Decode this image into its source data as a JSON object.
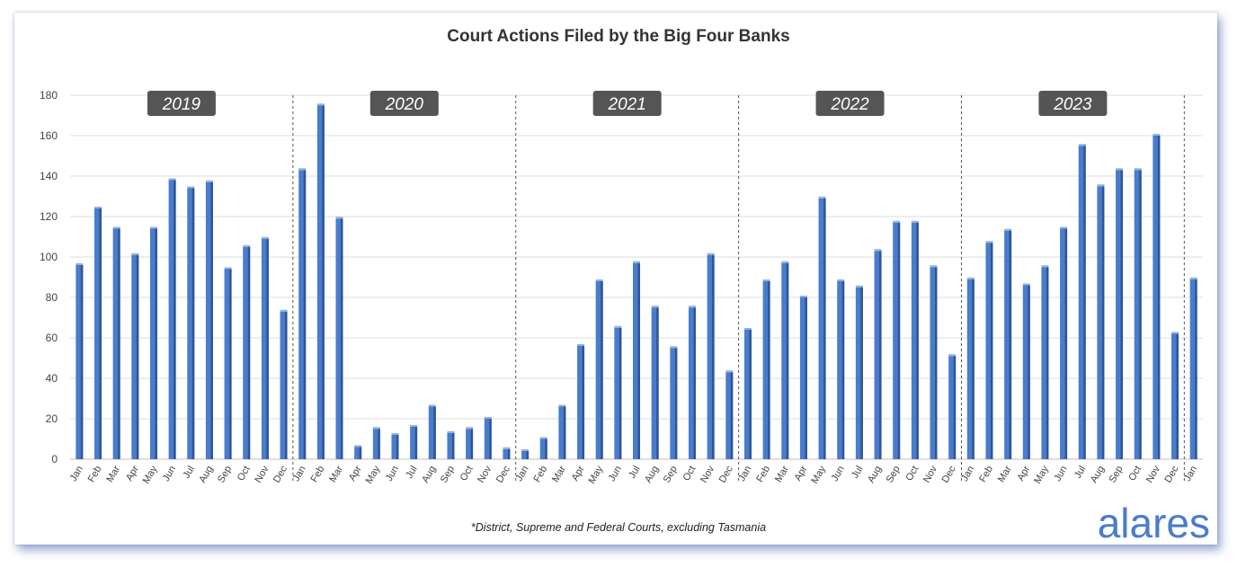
{
  "chart_data": {
    "type": "bar",
    "title": "Court Actions Filed by the Big Four Banks",
    "footnote": "*District, Supreme and Federal Courts, excluding Tasmania",
    "brand": "alares",
    "ylim": [
      0,
      180
    ],
    "yticks": [
      0,
      20,
      40,
      60,
      80,
      100,
      120,
      140,
      160,
      180
    ],
    "grid": true,
    "legend": "none",
    "bar_color": "#4a7ccc",
    "year_label_color": "#555555",
    "year_groups": [
      {
        "year": "2019",
        "start": 0,
        "count": 12
      },
      {
        "year": "2020",
        "start": 12,
        "count": 12
      },
      {
        "year": "2021",
        "start": 24,
        "count": 12
      },
      {
        "year": "2022",
        "start": 36,
        "count": 12
      },
      {
        "year": "2023",
        "start": 48,
        "count": 12
      }
    ],
    "categories": [
      "Jan",
      "Feb",
      "Mar",
      "Apr",
      "May",
      "Jun",
      "Jul",
      "Aug",
      "Sep",
      "Oct",
      "Nov",
      "Dec",
      "Jan",
      "Feb",
      "Mar",
      "Apr",
      "May",
      "Jun",
      "Jul",
      "Aug",
      "Sep",
      "Oct",
      "Nov",
      "Dec",
      "Jan",
      "Feb",
      "Mar",
      "Apr",
      "May",
      "Jun",
      "Jul",
      "Aug",
      "Sep",
      "Oct",
      "Nov",
      "Dec",
      "Jan",
      "Feb",
      "Mar",
      "Apr",
      "May",
      "Jun",
      "Jul",
      "Aug",
      "Sep",
      "Oct",
      "Nov",
      "Dec",
      "Jan",
      "Feb",
      "Mar",
      "Apr",
      "May",
      "Jun",
      "Jul",
      "Aug",
      "Sep",
      "Oct",
      "Nov",
      "Dec",
      "Jan"
    ],
    "values": [
      96,
      124,
      114,
      101,
      114,
      138,
      134,
      137,
      94,
      105,
      109,
      73,
      143,
      175,
      119,
      6,
      15,
      12,
      16,
      26,
      13,
      15,
      20,
      5,
      4,
      10,
      26,
      56,
      88,
      65,
      97,
      75,
      55,
      75,
      101,
      43,
      64,
      88,
      97,
      80,
      129,
      88,
      85,
      103,
      117,
      117,
      95,
      51,
      89,
      107,
      113,
      86,
      95,
      114,
      155,
      135,
      143,
      143,
      160,
      62,
      89
    ]
  }
}
